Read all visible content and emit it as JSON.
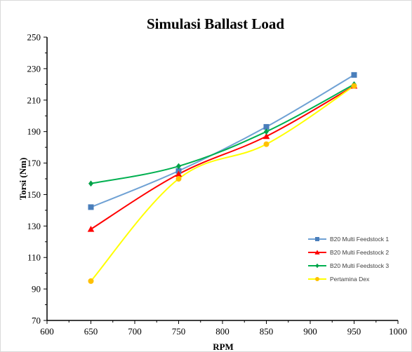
{
  "chart_data": {
    "type": "line",
    "title": "Simulasi Ballast Load",
    "xlabel": "RPM",
    "ylabel": "Torsi (Nm)",
    "xlim": [
      600,
      1000
    ],
    "ylim": [
      70,
      250
    ],
    "x_ticks": [
      "600",
      "650",
      "700",
      "750",
      "800",
      "850",
      "900",
      "950",
      "1000"
    ],
    "y_ticks": [
      "70",
      "90",
      "110",
      "130",
      "150",
      "170",
      "190",
      "210",
      "230",
      "250"
    ],
    "x": [
      650,
      750,
      850,
      950
    ],
    "legend_position": "lower-right",
    "grid": false,
    "series": [
      {
        "name": "B20 Multi Feedstock 1",
        "color": "#6fa1d4",
        "marker_color": "#4a7ebb",
        "marker": "square",
        "values": [
          142,
          165,
          193,
          226
        ]
      },
      {
        "name": "B20 Multi Feedstock 2",
        "color": "#ff0000",
        "marker_color": "#ff0000",
        "marker": "triangle",
        "values": [
          128,
          163,
          187,
          219
        ]
      },
      {
        "name": "B20 Multi Feedstock 3",
        "color": "#00b050",
        "marker_color": "#00a048",
        "marker": "diamond",
        "values": [
          157,
          168,
          190,
          220
        ]
      },
      {
        "name": "Pertamina Dex",
        "color": "#ffff00",
        "marker_color": "#ffc000",
        "marker": "circle",
        "values": [
          95,
          160,
          182,
          219
        ]
      }
    ]
  }
}
